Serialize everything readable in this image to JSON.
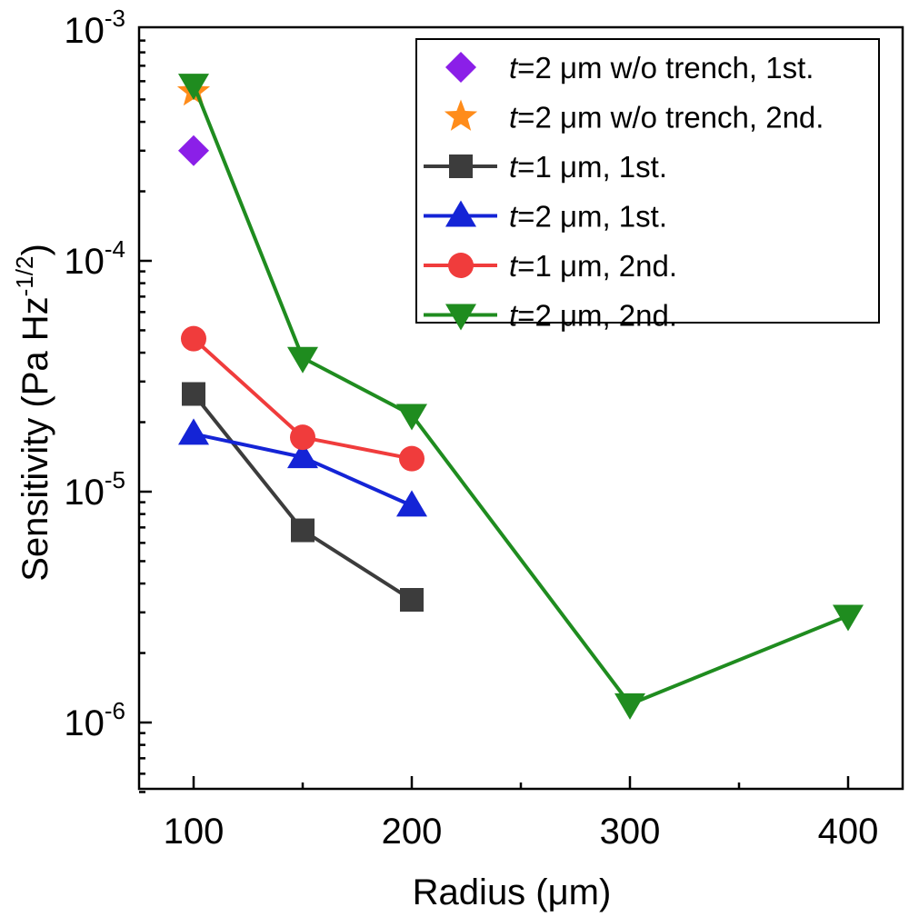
{
  "chart_data": {
    "type": "line",
    "title": "",
    "xlabel": "Radius (μm)",
    "ylabel": {
      "text": "Sensitivity (Pa Hz",
      "sup": "-1/2",
      "close": ")"
    },
    "xlim": [
      75,
      425
    ],
    "ylim": [
      5e-07,
      0.001
    ],
    "yscale": "log",
    "xticks": [
      100,
      200,
      300,
      400
    ],
    "xtick_labels": [
      "100",
      "200",
      "300",
      "400"
    ],
    "yticks": [
      {
        "value": 1e-06,
        "base": "10",
        "exp": "-6"
      },
      {
        "value": 1e-05,
        "base": "10",
        "exp": "-5"
      },
      {
        "value": 0.0001,
        "base": "10",
        "exp": "-4"
      },
      {
        "value": 0.001,
        "base": "10",
        "exp": "-3"
      }
    ],
    "legend_position": "top-right",
    "series": [
      {
        "name": "t=2 μm w/o trench, 1st.",
        "italic": "t",
        "rest": "=2 μm w/o trench, 1st.",
        "color": "#8b1fe8",
        "marker": "diamond",
        "line": false,
        "x": [
          100
        ],
        "y": [
          0.0003
        ]
      },
      {
        "name": "t=2 μm w/o trench, 2nd.",
        "italic": "t",
        "rest": "=2 μm w/o trench, 2nd.",
        "color": "#ff8c1a",
        "marker": "star",
        "line": false,
        "x": [
          100
        ],
        "y": [
          0.00054
        ]
      },
      {
        "name": "t=1 μm, 1st.",
        "italic": "t",
        "rest": "=1 μm, 1st.",
        "color": "#3c3c3c",
        "marker": "square",
        "line": true,
        "x": [
          100,
          150,
          200
        ],
        "y": [
          2.65e-05,
          6.8e-06,
          3.4e-06
        ]
      },
      {
        "name": "t=2 μm, 1st.",
        "italic": "t",
        "rest": "=2 μm, 1st.",
        "color": "#1424d6",
        "marker": "triangle-up",
        "line": true,
        "x": [
          100,
          150,
          200
        ],
        "y": [
          1.78e-05,
          1.41e-05,
          8.7e-06
        ]
      },
      {
        "name": "t=1 μm, 2nd.",
        "italic": "t",
        "rest": "=1 μm, 2nd.",
        "color": "#f03c3c",
        "marker": "circle",
        "line": true,
        "x": [
          100,
          150,
          200
        ],
        "y": [
          4.6e-05,
          1.72e-05,
          1.39e-05
        ]
      },
      {
        "name": "t=2 μm, 2nd.",
        "italic": "t",
        "rest": "=2 μm, 2nd.",
        "color": "#1f8c1f",
        "marker": "triangle-down",
        "line": true,
        "x": [
          100,
          150,
          200,
          300,
          400
        ],
        "y": [
          0.00058,
          3.8e-05,
          2.15e-05,
          1.2e-06,
          2.9e-06
        ]
      }
    ]
  }
}
